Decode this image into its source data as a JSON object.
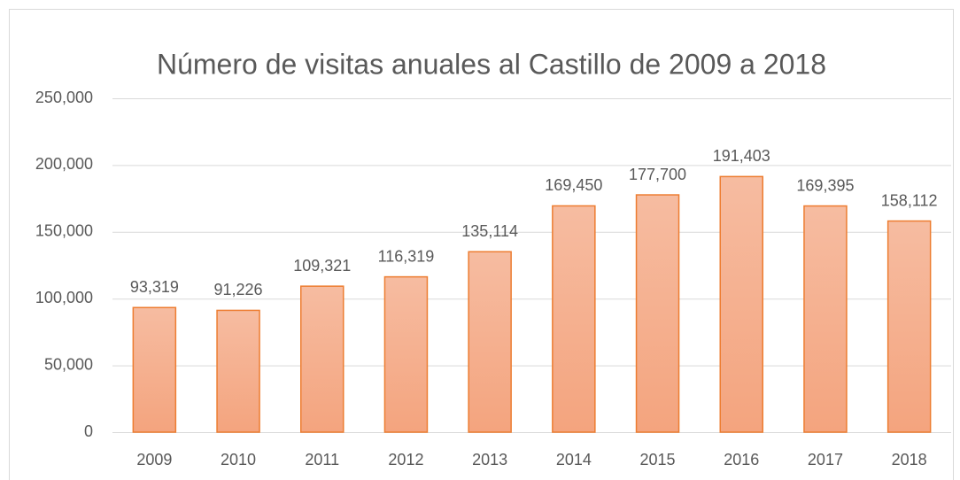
{
  "chart_data": {
    "type": "bar",
    "title": "Número de visitas anuales al Castillo de 2009 a 2018",
    "categories": [
      "2009",
      "2010",
      "2011",
      "2012",
      "2013",
      "2014",
      "2015",
      "2016",
      "2017",
      "2018"
    ],
    "values": [
      93319,
      91226,
      109321,
      116319,
      135114,
      169450,
      177700,
      191403,
      169395,
      158112
    ],
    "value_labels": [
      "93,319",
      "91,226",
      "109,321",
      "116,319",
      "135,114",
      "169,450",
      "177,700",
      "191,403",
      "169,395",
      "158,112"
    ],
    "color": "#ed7d31",
    "ylim": [
      0,
      250000
    ],
    "yticks": [
      0,
      {
        "value": 50000,
        "label": "50,000"
      },
      {
        "value": 100000,
        "label": "100,000"
      },
      {
        "value": 150000,
        "label": "150,000"
      },
      {
        "value": 200000,
        "label": "200,000"
      },
      {
        "value": 250000,
        "label": "250,000"
      }
    ],
    "grid": true
  }
}
